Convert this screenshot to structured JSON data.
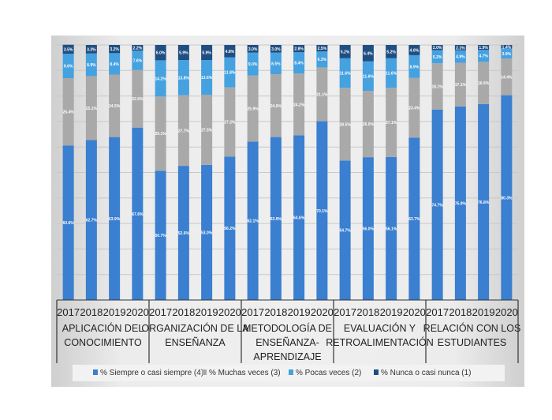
{
  "chart_data": {
    "type": "bar",
    "stacked": true,
    "title": "",
    "xlabel": "",
    "ylabel": "",
    "ylim": [
      0,
      100
    ],
    "grid": true,
    "legend_position": "bottom",
    "years": [
      "2017",
      "2018",
      "2019",
      "2020"
    ],
    "groups": [
      "APLICACIÓN DEL CONOCIMIENTO",
      "ORGANIZACIÓN DE LA ENSEÑANZA",
      "METODOLOGÍA DE ENSEÑANZA-APRENDIZAJE",
      "EVALUACIÓN Y RETROALIMENTACIÓN",
      "RELACIÓN CON LOS ESTUDIANTES"
    ],
    "group_lines": [
      [
        "APLICACIÓN DEL",
        "CONOCIMIENTO"
      ],
      [
        "ORGANIZACIÓN DE LA",
        "ENSEÑANZA"
      ],
      [
        "METODOLOGÍA DE",
        "ENSEÑANZA-",
        "APRENDIZAJE"
      ],
      [
        "EVALUACIÓN Y",
        "RETROALIMENTACIÓN"
      ],
      [
        "RELACIÓN CON LOS",
        "ESTUDIANTES"
      ]
    ],
    "series": [
      {
        "name": "% Siempre o casi siempre (4)",
        "color": "#3a7fd0",
        "values": [
          60.6,
          62.7,
          63.9,
          67.6,
          50.7,
          52.6,
          53.0,
          56.2,
          62.1,
          63.9,
          64.6,
          70.1,
          54.7,
          56.0,
          56.1,
          63.7,
          74.7,
          75.9,
          76.8,
          80.3
        ]
      },
      {
        "name": "% Muchas veces (3)",
        "color": "#a9a9a9",
        "values": [
          26.4,
          25.1,
          24.5,
          22.6,
          29.1,
          27.7,
          27.5,
          27.2,
          25.9,
          24.6,
          24.2,
          21.1,
          28.5,
          26.0,
          27.1,
          23.4,
          18.1,
          17.1,
          16.6,
          14.4
        ]
      },
      {
        "name": "% Pocas veces (2)",
        "color": "#45a1e0",
        "values": [
          9.6,
          8.9,
          8.4,
          7.6,
          14.2,
          13.8,
          13.6,
          11.8,
          9.0,
          8.5,
          8.4,
          6.3,
          11.6,
          11.6,
          11.6,
          8.9,
          5.2,
          4.9,
          4.7,
          3.9
        ]
      },
      {
        "name": "% Nunca o casi nunca (1)",
        "color": "#1f4e82",
        "values": [
          3.5,
          3.3,
          3.2,
          2.2,
          6.0,
          5.9,
          5.9,
          4.8,
          3.0,
          3.0,
          2.8,
          2.5,
          5.2,
          6.4,
          5.2,
          4.0,
          2.0,
          2.1,
          1.9,
          1.4
        ]
      }
    ]
  }
}
